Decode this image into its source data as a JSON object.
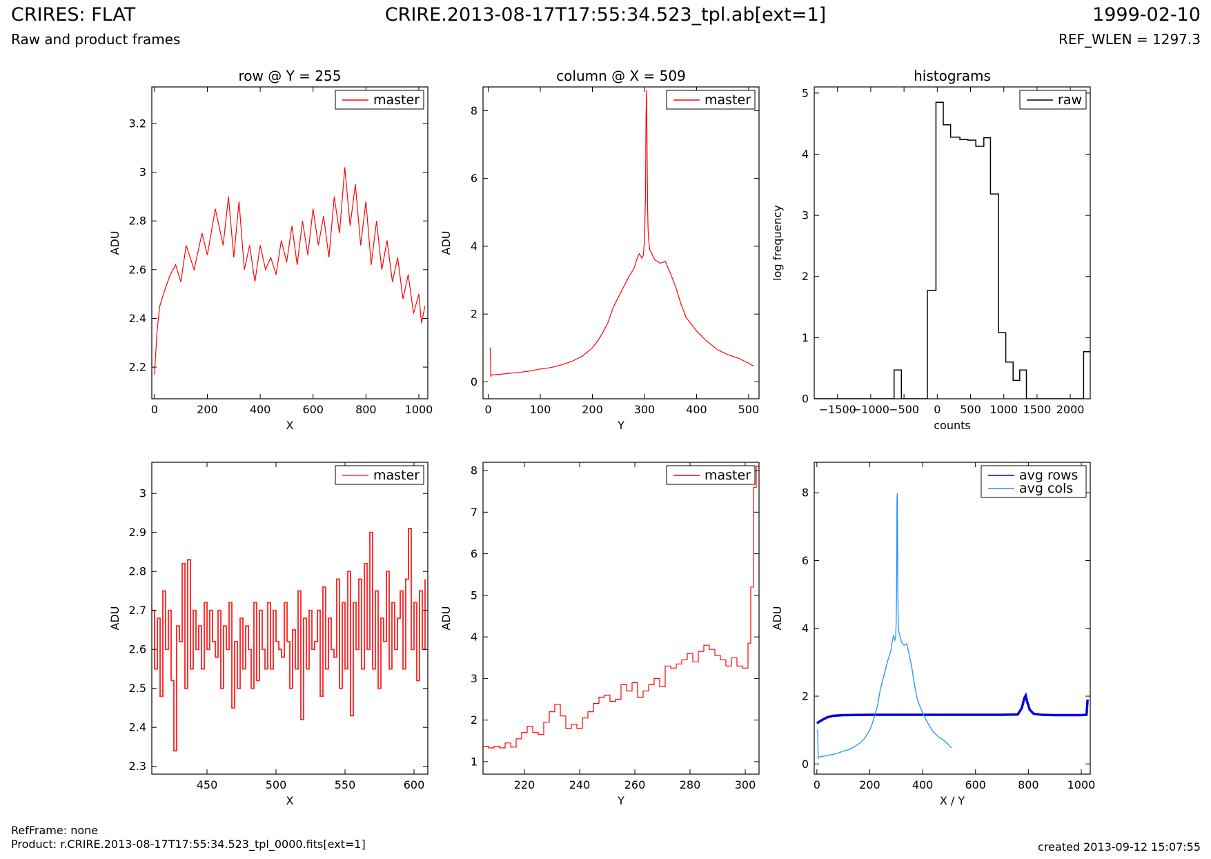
{
  "header": {
    "title": "CRIRES: FLAT",
    "subtitle": "Raw and product frames",
    "filename": "CRIRE.2013-08-17T17:55:34.523_tpl.ab[ext=1]",
    "date": "1999-02-10",
    "ref_wlen": "REF_WLEN = 1297.3"
  },
  "footer": {
    "refframe": "RefFrame: none",
    "product": "Product: r.CRIRE.2013-08-17T17:55:34.523_tpl_0000.fits[ext=1]",
    "created": "created 2013-09-12 15:07:55"
  },
  "colors": {
    "master": "#ff0000",
    "master_zoom": "#ff3333",
    "raw": "#000000",
    "avg_rows": "#0000dd",
    "avg_cols": "#1e90ff"
  },
  "chart_data": [
    {
      "type": "line",
      "title": "row @ Y = 255",
      "xlabel": "X",
      "ylabel": "ADU",
      "xlim": [
        -10,
        1034
      ],
      "ylim": [
        2.07,
        3.35
      ],
      "xticks": [
        0,
        200,
        400,
        600,
        800,
        1000
      ],
      "yticks": [
        2.2,
        2.4,
        2.6,
        2.8,
        3.0,
        3.2
      ],
      "legend": {
        "position": "top-right",
        "entries": [
          "master"
        ]
      },
      "series": [
        {
          "name": "master",
          "color": "#ff0000",
          "step": false,
          "width": 1.2,
          "x": [
            0,
            10,
            20,
            40,
            60,
            80,
            100,
            120,
            150,
            180,
            200,
            230,
            260,
            280,
            300,
            320,
            340,
            360,
            380,
            400,
            420,
            440,
            460,
            480,
            500,
            520,
            540,
            560,
            580,
            600,
            620,
            640,
            660,
            680,
            700,
            720,
            740,
            760,
            780,
            800,
            820,
            840,
            860,
            880,
            900,
            920,
            940,
            960,
            980,
            1000,
            1010,
            1023
          ],
          "y": [
            2.17,
            2.35,
            2.45,
            2.52,
            2.58,
            2.62,
            2.55,
            2.7,
            2.6,
            2.75,
            2.66,
            2.85,
            2.7,
            2.9,
            2.65,
            2.88,
            2.6,
            2.7,
            2.55,
            2.7,
            2.6,
            2.65,
            2.58,
            2.72,
            2.63,
            2.78,
            2.62,
            2.8,
            2.66,
            2.85,
            2.7,
            2.82,
            2.65,
            2.9,
            2.75,
            3.02,
            2.78,
            2.95,
            2.7,
            2.88,
            2.62,
            2.8,
            2.6,
            2.72,
            2.55,
            2.65,
            2.48,
            2.58,
            2.42,
            2.5,
            2.38,
            2.45
          ]
        }
      ]
    },
    {
      "type": "line",
      "title": "column @ X = 509",
      "xlabel": "Y",
      "ylabel": "ADU",
      "xlim": [
        -10,
        520
      ],
      "ylim": [
        -0.5,
        8.7
      ],
      "xticks": [
        0,
        100,
        200,
        300,
        400,
        500
      ],
      "yticks": [
        0,
        2,
        4,
        6,
        8
      ],
      "legend": {
        "position": "top-right",
        "entries": [
          "master"
        ]
      },
      "series": [
        {
          "name": "master",
          "color": "#ff0000",
          "step": false,
          "width": 1.2,
          "x": [
            3,
            4,
            5,
            6,
            20,
            40,
            60,
            80,
            100,
            120,
            140,
            160,
            180,
            200,
            210,
            220,
            230,
            240,
            250,
            260,
            270,
            280,
            285,
            290,
            295,
            298,
            300,
            302,
            303,
            304,
            305,
            306,
            307,
            308,
            310,
            315,
            320,
            330,
            340,
            350,
            360,
            370,
            380,
            400,
            420,
            440,
            460,
            480,
            500,
            505,
            510
          ],
          "y": [
            1.0,
            1.0,
            0.15,
            0.2,
            0.22,
            0.25,
            0.28,
            0.32,
            0.38,
            0.42,
            0.5,
            0.6,
            0.75,
            1.0,
            1.2,
            1.45,
            1.75,
            2.2,
            2.5,
            2.8,
            3.1,
            3.35,
            3.6,
            3.78,
            3.65,
            3.75,
            4.2,
            5.5,
            7.8,
            8.6,
            7.0,
            5.2,
            4.5,
            4.2,
            3.9,
            3.75,
            3.6,
            3.5,
            3.55,
            3.2,
            2.8,
            2.3,
            1.9,
            1.5,
            1.2,
            0.95,
            0.8,
            0.7,
            0.55,
            0.5,
            0.48
          ]
        }
      ]
    },
    {
      "type": "line",
      "title": "histograms",
      "xlabel": "counts",
      "ylabel": "log frequency",
      "xlim": [
        -1850,
        2300
      ],
      "ylim": [
        0,
        5.1
      ],
      "xticks": [
        -1500,
        -1000,
        -500,
        0,
        500,
        1000,
        1500,
        2000
      ],
      "yticks": [
        0,
        1,
        2,
        3,
        4,
        5
      ],
      "legend": {
        "position": "top-right",
        "entries": [
          "raw"
        ]
      },
      "series": [
        {
          "name": "raw",
          "color": "#000000",
          "step": true,
          "width": 1.5,
          "x": [
            -1850,
            -650,
            -650,
            -540,
            -540,
            -150,
            -150,
            -20,
            -20,
            90,
            90,
            200,
            200,
            340,
            340,
            460,
            460,
            580,
            580,
            700,
            700,
            800,
            800,
            920,
            920,
            1030,
            1030,
            1140,
            1140,
            1240,
            1240,
            1340,
            1340,
            2200,
            2200,
            2300
          ],
          "y": [
            0,
            0,
            0.47,
            0.47,
            0,
            0,
            1.77,
            1.77,
            4.85,
            4.85,
            4.48,
            4.48,
            4.28,
            4.28,
            4.24,
            4.24,
            4.23,
            4.23,
            4.13,
            4.13,
            4.27,
            4.27,
            3.35,
            3.35,
            1.08,
            1.08,
            0.6,
            0.6,
            0.3,
            0.3,
            0.47,
            0.47,
            0,
            0,
            0.77,
            0.77
          ]
        }
      ]
    },
    {
      "type": "line",
      "title": "",
      "xlabel": "X",
      "ylabel": "ADU",
      "xlim": [
        410,
        610
      ],
      "ylim": [
        2.28,
        3.08
      ],
      "xticks": [
        450,
        500,
        550,
        600
      ],
      "yticks": [
        2.3,
        2.4,
        2.5,
        2.6,
        2.7,
        2.8,
        2.9,
        3.0
      ],
      "legend": {
        "position": "top-right",
        "entries": [
          "master"
        ]
      },
      "series": [
        {
          "name": "master",
          "color": "#ff3333",
          "step": true,
          "width": 2,
          "x": [
            410,
            412,
            414,
            416,
            418,
            420,
            422,
            424,
            426,
            428,
            430,
            432,
            434,
            436,
            438,
            440,
            442,
            444,
            446,
            448,
            450,
            452,
            454,
            456,
            458,
            460,
            462,
            464,
            466,
            468,
            470,
            472,
            474,
            476,
            478,
            480,
            482,
            484,
            486,
            488,
            490,
            492,
            494,
            496,
            498,
            500,
            502,
            504,
            506,
            508,
            510,
            512,
            514,
            516,
            518,
            520,
            522,
            524,
            526,
            528,
            530,
            532,
            534,
            536,
            538,
            540,
            542,
            544,
            546,
            548,
            550,
            552,
            554,
            556,
            558,
            560,
            562,
            564,
            566,
            568,
            570,
            572,
            574,
            576,
            578,
            580,
            582,
            584,
            586,
            588,
            590,
            592,
            594,
            596,
            598,
            600,
            602,
            604,
            606,
            608
          ],
          "y": [
            2.7,
            2.55,
            2.68,
            2.48,
            2.75,
            2.6,
            2.7,
            2.52,
            2.34,
            2.66,
            2.62,
            2.82,
            2.5,
            2.83,
            2.55,
            2.7,
            2.6,
            2.66,
            2.55,
            2.72,
            2.6,
            2.7,
            2.62,
            2.58,
            2.7,
            2.5,
            2.66,
            2.6,
            2.72,
            2.45,
            2.62,
            2.5,
            2.68,
            2.55,
            2.66,
            2.6,
            2.5,
            2.72,
            2.52,
            2.7,
            2.6,
            2.55,
            2.72,
            2.55,
            2.7,
            2.62,
            2.6,
            2.58,
            2.72,
            2.62,
            2.5,
            2.65,
            2.55,
            2.75,
            2.42,
            2.68,
            2.55,
            2.7,
            2.6,
            2.62,
            2.7,
            2.48,
            2.76,
            2.55,
            2.68,
            2.6,
            2.58,
            2.78,
            2.5,
            2.72,
            2.55,
            2.8,
            2.43,
            2.72,
            2.6,
            2.78,
            2.55,
            2.82,
            2.6,
            2.9,
            2.55,
            2.75,
            2.5,
            2.68,
            2.62,
            2.8,
            2.55,
            2.72,
            2.6,
            2.68,
            2.75,
            2.55,
            2.78,
            2.91,
            2.6,
            2.72,
            2.52,
            2.75,
            2.6,
            2.78
          ]
        }
      ]
    },
    {
      "type": "line",
      "title": "",
      "xlabel": "Y",
      "ylabel": "ADU",
      "xlim": [
        205,
        305
      ],
      "ylim": [
        0.7,
        8.2
      ],
      "xticks": [
        220,
        240,
        260,
        280,
        300
      ],
      "yticks": [
        1,
        2,
        3,
        4,
        5,
        6,
        7,
        8
      ],
      "legend": {
        "position": "top-right",
        "entries": [
          "master"
        ]
      },
      "series": [
        {
          "name": "master",
          "color": "#ff0000",
          "step": true,
          "width": 1.2,
          "x": [
            205,
            207,
            209,
            211,
            213,
            215,
            217,
            219,
            221,
            223,
            225,
            227,
            229,
            231,
            233,
            235,
            237,
            239,
            241,
            243,
            245,
            247,
            249,
            251,
            253,
            255,
            257,
            259,
            261,
            263,
            265,
            267,
            269,
            271,
            273,
            275,
            277,
            279,
            281,
            283,
            285,
            287,
            289,
            291,
            293,
            295,
            297,
            299,
            301,
            302,
            303,
            304,
            305
          ],
          "y": [
            1.37,
            1.33,
            1.37,
            1.33,
            1.45,
            1.35,
            1.55,
            1.7,
            1.85,
            1.7,
            1.65,
            1.95,
            2.2,
            2.38,
            2.1,
            1.8,
            1.9,
            1.8,
            2.05,
            2.2,
            2.4,
            2.55,
            2.6,
            2.45,
            2.5,
            2.85,
            2.7,
            2.9,
            2.55,
            2.7,
            2.85,
            3.0,
            2.8,
            3.3,
            3.25,
            3.35,
            3.45,
            3.6,
            3.4,
            3.65,
            3.8,
            3.7,
            3.55,
            3.45,
            3.3,
            3.5,
            3.3,
            3.25,
            3.85,
            5.2,
            7.6,
            8.1,
            8.1
          ]
        }
      ]
    },
    {
      "type": "line",
      "title": "",
      "xlabel": "X / Y",
      "ylabel": "ADU",
      "xlim": [
        -10,
        1034
      ],
      "ylim": [
        -0.3,
        8.9
      ],
      "xticks": [
        0,
        200,
        400,
        600,
        800,
        1000
      ],
      "yticks": [
        0,
        2,
        4,
        6,
        8
      ],
      "legend": {
        "position": "top-right",
        "entries": [
          "avg rows",
          "avg cols"
        ]
      },
      "series": [
        {
          "name": "avg rows",
          "color": "#0000dd",
          "step": false,
          "width": 3.5,
          "x": [
            0,
            20,
            40,
            60,
            100,
            200,
            400,
            600,
            700,
            760,
            775,
            785,
            790,
            795,
            805,
            820,
            850,
            900,
            1000,
            1020,
            1023,
            1024
          ],
          "y": [
            1.2,
            1.3,
            1.38,
            1.42,
            1.44,
            1.45,
            1.45,
            1.45,
            1.45,
            1.46,
            1.65,
            1.95,
            2.02,
            1.85,
            1.6,
            1.48,
            1.45,
            1.44,
            1.44,
            1.45,
            1.8,
            1.9
          ]
        },
        {
          "name": "avg cols",
          "color": "#1e90ff",
          "step": false,
          "width": 1.3,
          "x": [
            0,
            3,
            5,
            6,
            20,
            40,
            60,
            80,
            100,
            120,
            140,
            160,
            180,
            200,
            210,
            220,
            230,
            240,
            250,
            260,
            270,
            280,
            285,
            290,
            295,
            298,
            300,
            302,
            303,
            304,
            305,
            306,
            307,
            308,
            310,
            315,
            320,
            330,
            340,
            350,
            360,
            370,
            380,
            400,
            420,
            440,
            460,
            480,
            500,
            505,
            510
          ],
          "y": [
            1.0,
            1.0,
            0.15,
            0.2,
            0.22,
            0.25,
            0.28,
            0.32,
            0.38,
            0.42,
            0.5,
            0.6,
            0.75,
            1.0,
            1.2,
            1.45,
            1.75,
            2.2,
            2.5,
            2.8,
            3.1,
            3.35,
            3.6,
            3.78,
            3.65,
            3.75,
            4.2,
            5.5,
            7.8,
            8.0,
            7.0,
            5.2,
            4.5,
            4.2,
            3.9,
            3.75,
            3.6,
            3.5,
            3.55,
            3.2,
            2.8,
            2.3,
            1.9,
            1.5,
            1.2,
            0.95,
            0.8,
            0.7,
            0.55,
            0.5,
            0.48
          ]
        }
      ]
    }
  ]
}
